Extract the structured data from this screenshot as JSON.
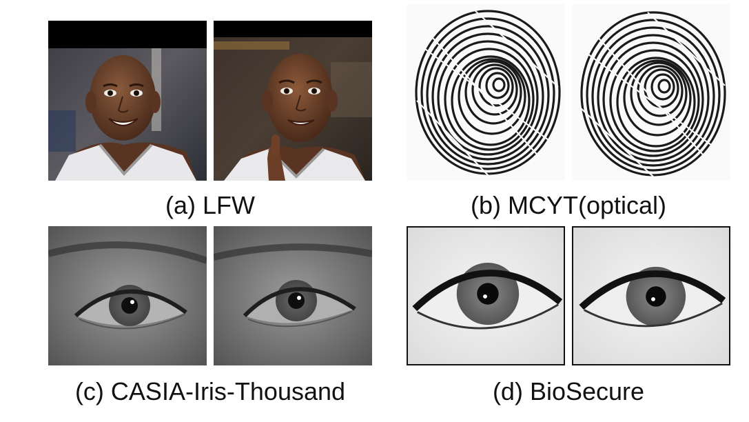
{
  "figure": {
    "panels": [
      {
        "id": "a",
        "caption": "(a) LFW"
      },
      {
        "id": "b",
        "caption": "(b) MCYT(optical)"
      },
      {
        "id": "c",
        "caption": "(c) CASIA-Iris-Thousand"
      },
      {
        "id": "d",
        "caption": "(d) BioSecure"
      }
    ]
  }
}
